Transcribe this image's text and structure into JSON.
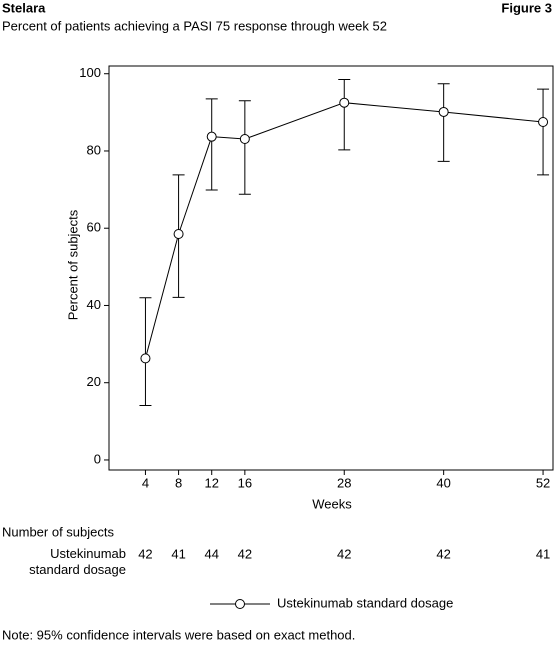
{
  "chart_data": {
    "type": "line",
    "header": "Stelara",
    "figure_label": "Figure 3",
    "title": "Percent of patients achieving a PASI 75 response through week 52",
    "x_label": "Weeks",
    "y_label": "Percent of subjects",
    "x": [
      4,
      8,
      12,
      16,
      28,
      40,
      52
    ],
    "series": [
      {
        "name": "Ustekinumab standard dosage",
        "color": "#000000",
        "values": [
          26.3,
          58.5,
          83.7,
          83.1,
          92.5,
          90.1,
          87.5
        ],
        "lower": [
          14.1,
          42.1,
          69.9,
          68.8,
          80.3,
          77.3,
          73.8
        ],
        "upper": [
          42.0,
          73.8,
          93.5,
          93.0,
          98.5,
          97.4,
          96.0
        ]
      }
    ],
    "xlim": [
      -0.4,
      53.2
    ],
    "xticks": [
      4,
      8,
      12,
      16,
      28,
      40,
      52
    ],
    "ylim": [
      -2.6,
      102
    ],
    "yticks": [
      0,
      20,
      40,
      60,
      80,
      100
    ],
    "subjects_table": {
      "title": "Number of subjects",
      "row_label": "Ustekinumab standard dosage",
      "values": [
        42,
        41,
        44,
        42,
        42,
        42,
        41
      ]
    },
    "note": "Note: 95% confidence intervals were based on exact method."
  }
}
